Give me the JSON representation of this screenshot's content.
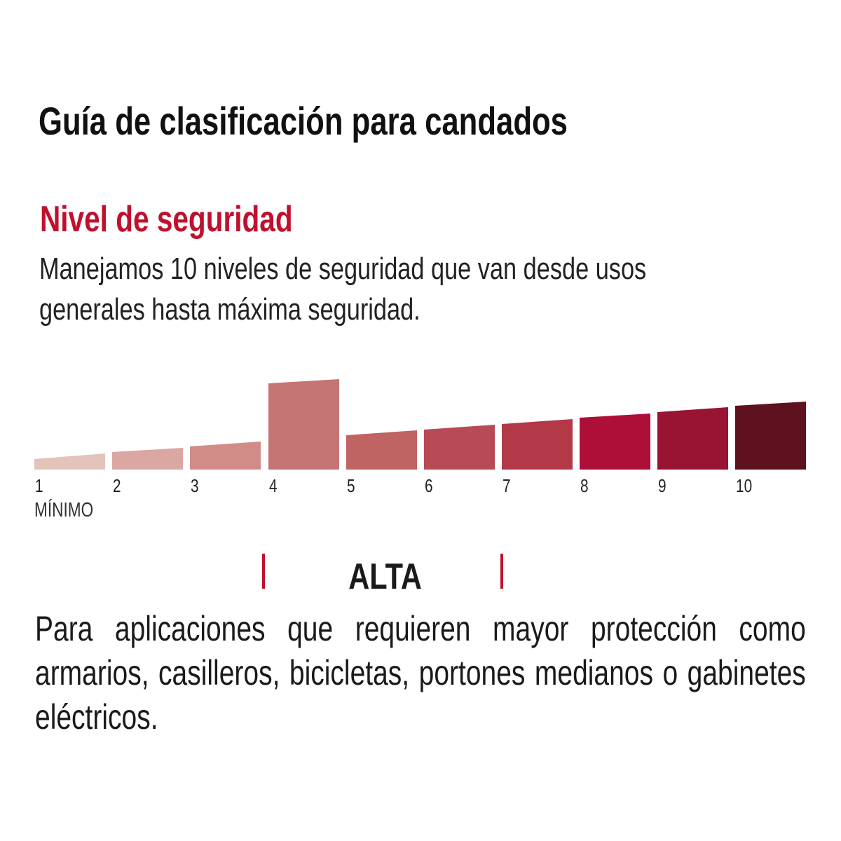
{
  "title": "Guía de clasificación para candados",
  "subtitle": "Nivel de seguridad",
  "description": "Manejamos 10 niveles de seguridad que van desde usos generales hasta máxima seguridad.",
  "description_lines": [
    "Manejamos 10 niveles de seguridad que van desde usos",
    "generales hasta máxima seguridad."
  ],
  "scale": {
    "levels": [
      "1",
      "2",
      "3",
      "4",
      "5",
      "6",
      "7",
      "8",
      "9",
      "10"
    ],
    "min_label": "MÍNIMO",
    "highlighted_level": 4,
    "colors": [
      "#e3c3ba",
      "#daa7a3",
      "#d18c88",
      "#c47473",
      "#bf6363",
      "#b84a56",
      "#b33948",
      "#ae0f39",
      "#991333",
      "#5e111e"
    ]
  },
  "category": {
    "label": "ALTA",
    "accent_color": "#c0102e"
  },
  "body": "Para aplicaciones que requieren mayor protección como armarios, casilleros, bicicletas, portones medianos o gabinetes eléctricos."
}
